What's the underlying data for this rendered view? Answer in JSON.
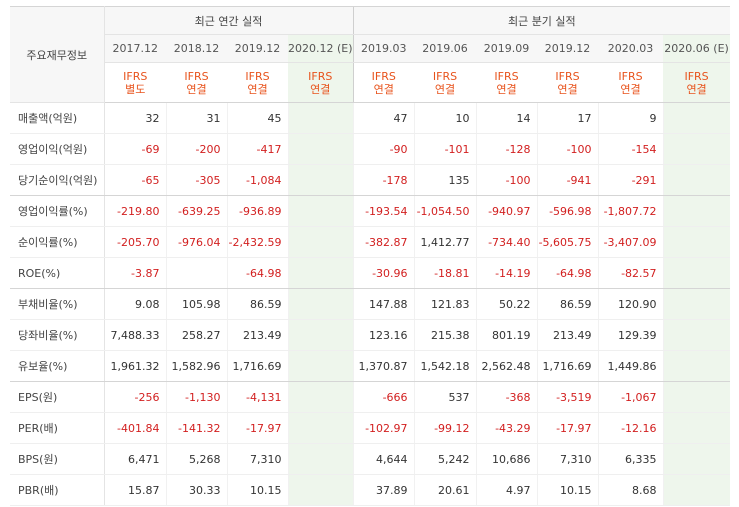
{
  "table": {
    "corner_label": "주요재무정보",
    "groups": [
      "최근 연간 실적",
      "최근 분기 실적"
    ],
    "annual_periods": [
      "2017.12",
      "2018.12",
      "2019.12",
      "2020.12 (E)"
    ],
    "quarter_periods": [
      "2019.03",
      "2019.06",
      "2019.09",
      "2019.12",
      "2020.03",
      "2020.06 (E)"
    ],
    "annual_accounting": [
      [
        "IFRS",
        "별도"
      ],
      [
        "IFRS",
        "연결"
      ],
      [
        "IFRS",
        "연결"
      ],
      [
        "IFRS",
        "연결"
      ]
    ],
    "quarter_accounting": [
      [
        "IFRS",
        "연결"
      ],
      [
        "IFRS",
        "연결"
      ],
      [
        "IFRS",
        "연결"
      ],
      [
        "IFRS",
        "연결"
      ],
      [
        "IFRS",
        "연결"
      ],
      [
        "IFRS",
        "연결"
      ]
    ],
    "rows": [
      {
        "label": "매출액(억원)",
        "values": [
          "32",
          "31",
          "45",
          "",
          "47",
          "10",
          "14",
          "17",
          "9",
          ""
        ]
      },
      {
        "label": "영업이익(억원)",
        "values": [
          "-69",
          "-200",
          "-417",
          "",
          "-90",
          "-101",
          "-128",
          "-100",
          "-154",
          ""
        ]
      },
      {
        "label": "당기순이익(억원)",
        "values": [
          "-65",
          "-305",
          "-1,084",
          "",
          "-178",
          "135",
          "-100",
          "-941",
          "-291",
          ""
        ]
      },
      {
        "label": "영업이익률(%)",
        "values": [
          "-219.80",
          "-639.25",
          "-936.89",
          "",
          "-193.54",
          "-1,054.50",
          "-940.97",
          "-596.98",
          "-1,807.72",
          ""
        ]
      },
      {
        "label": "순이익률(%)",
        "values": [
          "-205.70",
          "-976.04",
          "-2,432.59",
          "",
          "-382.87",
          "1,412.77",
          "-734.40",
          "-5,605.75",
          "-3,407.09",
          ""
        ]
      },
      {
        "label": "ROE(%)",
        "values": [
          "-3.87",
          "",
          "-64.98",
          "",
          "-30.96",
          "-18.81",
          "-14.19",
          "-64.98",
          "-82.57",
          ""
        ]
      },
      {
        "label": "부채비율(%)",
        "values": [
          "9.08",
          "105.98",
          "86.59",
          "",
          "147.88",
          "121.83",
          "50.22",
          "86.59",
          "120.90",
          ""
        ]
      },
      {
        "label": "당좌비율(%)",
        "values": [
          "7,488.33",
          "258.27",
          "213.49",
          "",
          "123.16",
          "215.38",
          "801.19",
          "213.49",
          "129.39",
          ""
        ]
      },
      {
        "label": "유보율(%)",
        "values": [
          "1,961.32",
          "1,582.96",
          "1,716.69",
          "",
          "1,370.87",
          "1,542.18",
          "2,562.48",
          "1,716.69",
          "1,449.86",
          ""
        ]
      },
      {
        "label": "EPS(원)",
        "values": [
          "-256",
          "-1,130",
          "-4,131",
          "",
          "-666",
          "537",
          "-368",
          "-3,519",
          "-1,067",
          ""
        ]
      },
      {
        "label": "PER(배)",
        "values": [
          "-401.84",
          "-141.32",
          "-17.97",
          "",
          "-102.97",
          "-99.12",
          "-43.29",
          "-17.97",
          "-12.16",
          ""
        ]
      },
      {
        "label": "BPS(원)",
        "values": [
          "6,471",
          "5,268",
          "7,310",
          "",
          "4,644",
          "5,242",
          "10,686",
          "7,310",
          "6,335",
          ""
        ]
      },
      {
        "label": "PBR(배)",
        "values": [
          "15.87",
          "30.33",
          "10.15",
          "",
          "37.89",
          "20.61",
          "4.97",
          "10.15",
          "8.68",
          ""
        ]
      }
    ]
  },
  "colors": {
    "negative_text": "#d21f1f",
    "accounting_text": "#e8531c",
    "estimate_column_bg": "#eef6ec",
    "header_bg": "#f7f7f7"
  }
}
